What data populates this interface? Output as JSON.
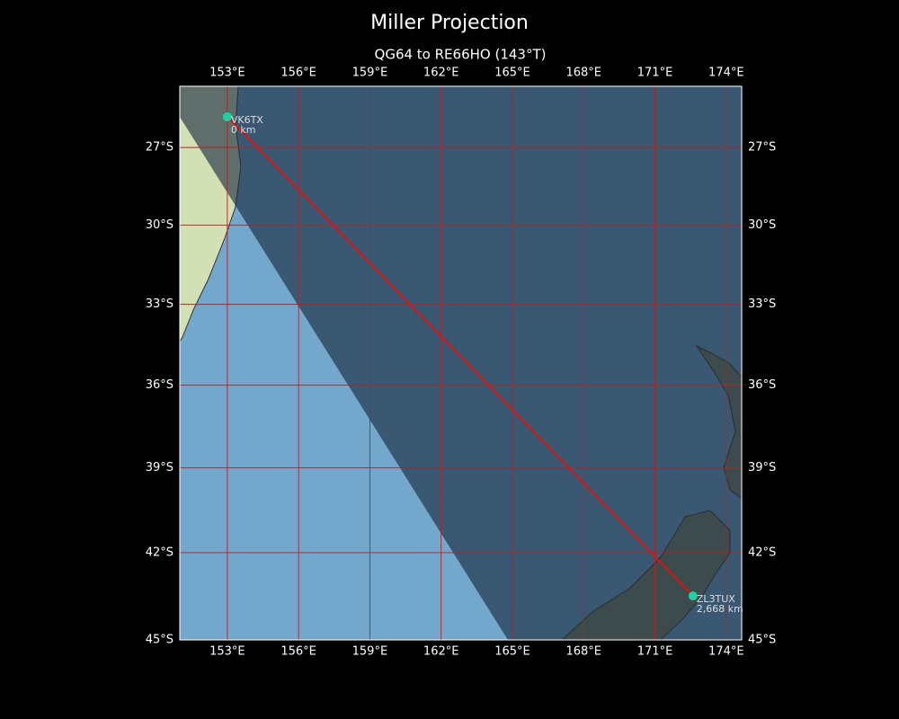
{
  "map": {
    "title": "Miller Projection",
    "subtitle": "QG64 to RE66HO (143°T)",
    "projection": "miller",
    "xlim": [
      151,
      174.65
    ],
    "ylim": [
      -45,
      -24.6
    ],
    "xticks": [
      {
        "value": 153,
        "label": "153°E"
      },
      {
        "value": 156,
        "label": "156°E"
      },
      {
        "value": 159,
        "label": "159°E"
      },
      {
        "value": 162,
        "label": "162°E"
      },
      {
        "value": 165,
        "label": "165°E"
      },
      {
        "value": 168,
        "label": "168°E"
      },
      {
        "value": 171,
        "label": "171°E"
      },
      {
        "value": 174,
        "label": "174°E"
      }
    ],
    "yticks": [
      {
        "value": -27,
        "label": "27°S"
      },
      {
        "value": -30,
        "label": "30°S"
      },
      {
        "value": -33,
        "label": "33°S"
      },
      {
        "value": -36,
        "label": "36°S"
      },
      {
        "value": -39,
        "label": "39°S"
      },
      {
        "value": -42,
        "label": "42°S"
      },
      {
        "value": -45,
        "label": "45°S"
      }
    ],
    "grid": true,
    "grid_color": "#b22222",
    "path_color": "#e01010",
    "marker_color": "#20d0a0",
    "stations": [
      {
        "name": "VK6TX",
        "distance": "0 km",
        "lon": 153,
        "lat": -25.8
      },
      {
        "name": "ZL3TUX",
        "distance": "2,668 km",
        "lon": 172.6,
        "lat": -43.5
      }
    ]
  }
}
